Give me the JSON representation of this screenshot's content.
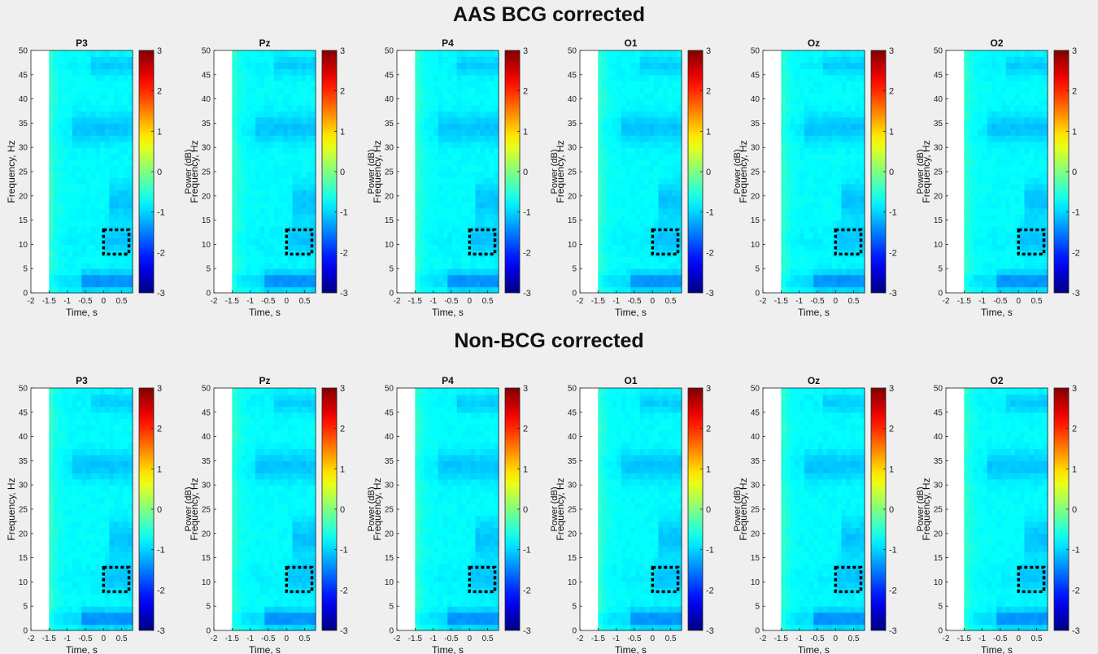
{
  "row_titles": [
    "AAS BCG corrected",
    "Non-BCG corrected"
  ],
  "chart_data": [
    {
      "type": "heatmap",
      "title": "AAS BCG corrected",
      "panels": [
        "P3",
        "Pz",
        "P4",
        "O1",
        "Oz",
        "O2"
      ],
      "xlabel": "Time, s",
      "ylabel": "Frequency, Hz",
      "xlim": [
        -2,
        0.8
      ],
      "ylim": [
        0,
        50
      ],
      "data_time_range": [
        -1.5,
        0.8
      ],
      "xticks": [
        "-2",
        "-1.5",
        "-1",
        "-0.5",
        "0",
        "0.5"
      ],
      "yticks": [
        "0",
        "5",
        "10",
        "15",
        "20",
        "25",
        "30",
        "35",
        "40",
        "45",
        "50"
      ],
      "colorbar": {
        "label": "Power (dB)",
        "range": [
          -3,
          3
        ],
        "ticks": [
          "-3",
          "-2",
          "-1",
          "0",
          "1",
          "2",
          "3"
        ],
        "colormap": "jet"
      },
      "highlight_box": {
        "time": [
          0,
          0.7
        ],
        "freq": [
          8,
          13
        ],
        "style": "dotted"
      }
    },
    {
      "type": "heatmap",
      "title": "Non-BCG corrected",
      "panels": [
        "P3",
        "Pz",
        "P4",
        "O1",
        "Oz",
        "O2"
      ],
      "xlabel": "Time, s",
      "ylabel": "Frequency, Hz",
      "xlim": [
        -2,
        0.8
      ],
      "ylim": [
        0,
        50
      ],
      "data_time_range": [
        -1.5,
        0.8
      ],
      "xticks": [
        "-2",
        "-1.5",
        "-1",
        "-0.5",
        "0",
        "0.5"
      ],
      "yticks": [
        "0",
        "5",
        "10",
        "15",
        "20",
        "25",
        "30",
        "35",
        "40",
        "45",
        "50"
      ],
      "colorbar": {
        "label": "Power (dB)",
        "range": [
          -3,
          3
        ],
        "ticks": [
          "-3",
          "-2",
          "-1",
          "0",
          "1",
          "2",
          "3"
        ],
        "colormap": "jet"
      },
      "highlight_box": {
        "time": [
          0,
          0.7
        ],
        "freq": [
          8,
          13
        ],
        "style": "dotted"
      }
    }
  ]
}
